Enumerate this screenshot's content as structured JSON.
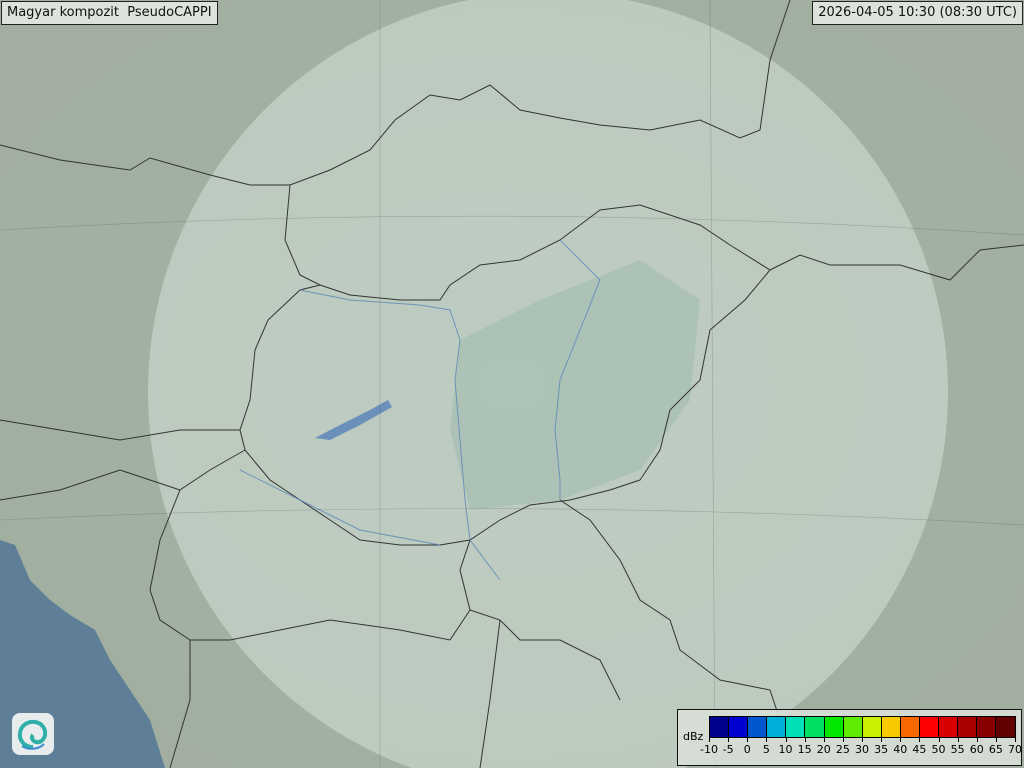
{
  "title": "Magyar kompozit  PseudoCAPPI",
  "timestamp": "2026-04-05 10:30 (08:30 UTC)",
  "legend": {
    "unit": "dBz",
    "ticks": [
      "-10",
      "-5",
      "0",
      "5",
      "10",
      "15",
      "20",
      "25",
      "30",
      "35",
      "40",
      "45",
      "50",
      "55",
      "60",
      "65",
      "70"
    ],
    "colors": [
      "#00008f",
      "#0000d0",
      "#0058d0",
      "#00b0d8",
      "#00e0b8",
      "#00e060",
      "#00e800",
      "#60ec00",
      "#c8f000",
      "#f8c800",
      "#f86800",
      "#ff0000",
      "#d80000",
      "#a80000",
      "#880000",
      "#600000"
    ]
  },
  "map": {
    "land_color": "#9fb0a2",
    "sea_color": "#5f7e98",
    "radar_coverage_color": "#dfe9e3",
    "logo_icon": "omsz-swirl-logo"
  }
}
